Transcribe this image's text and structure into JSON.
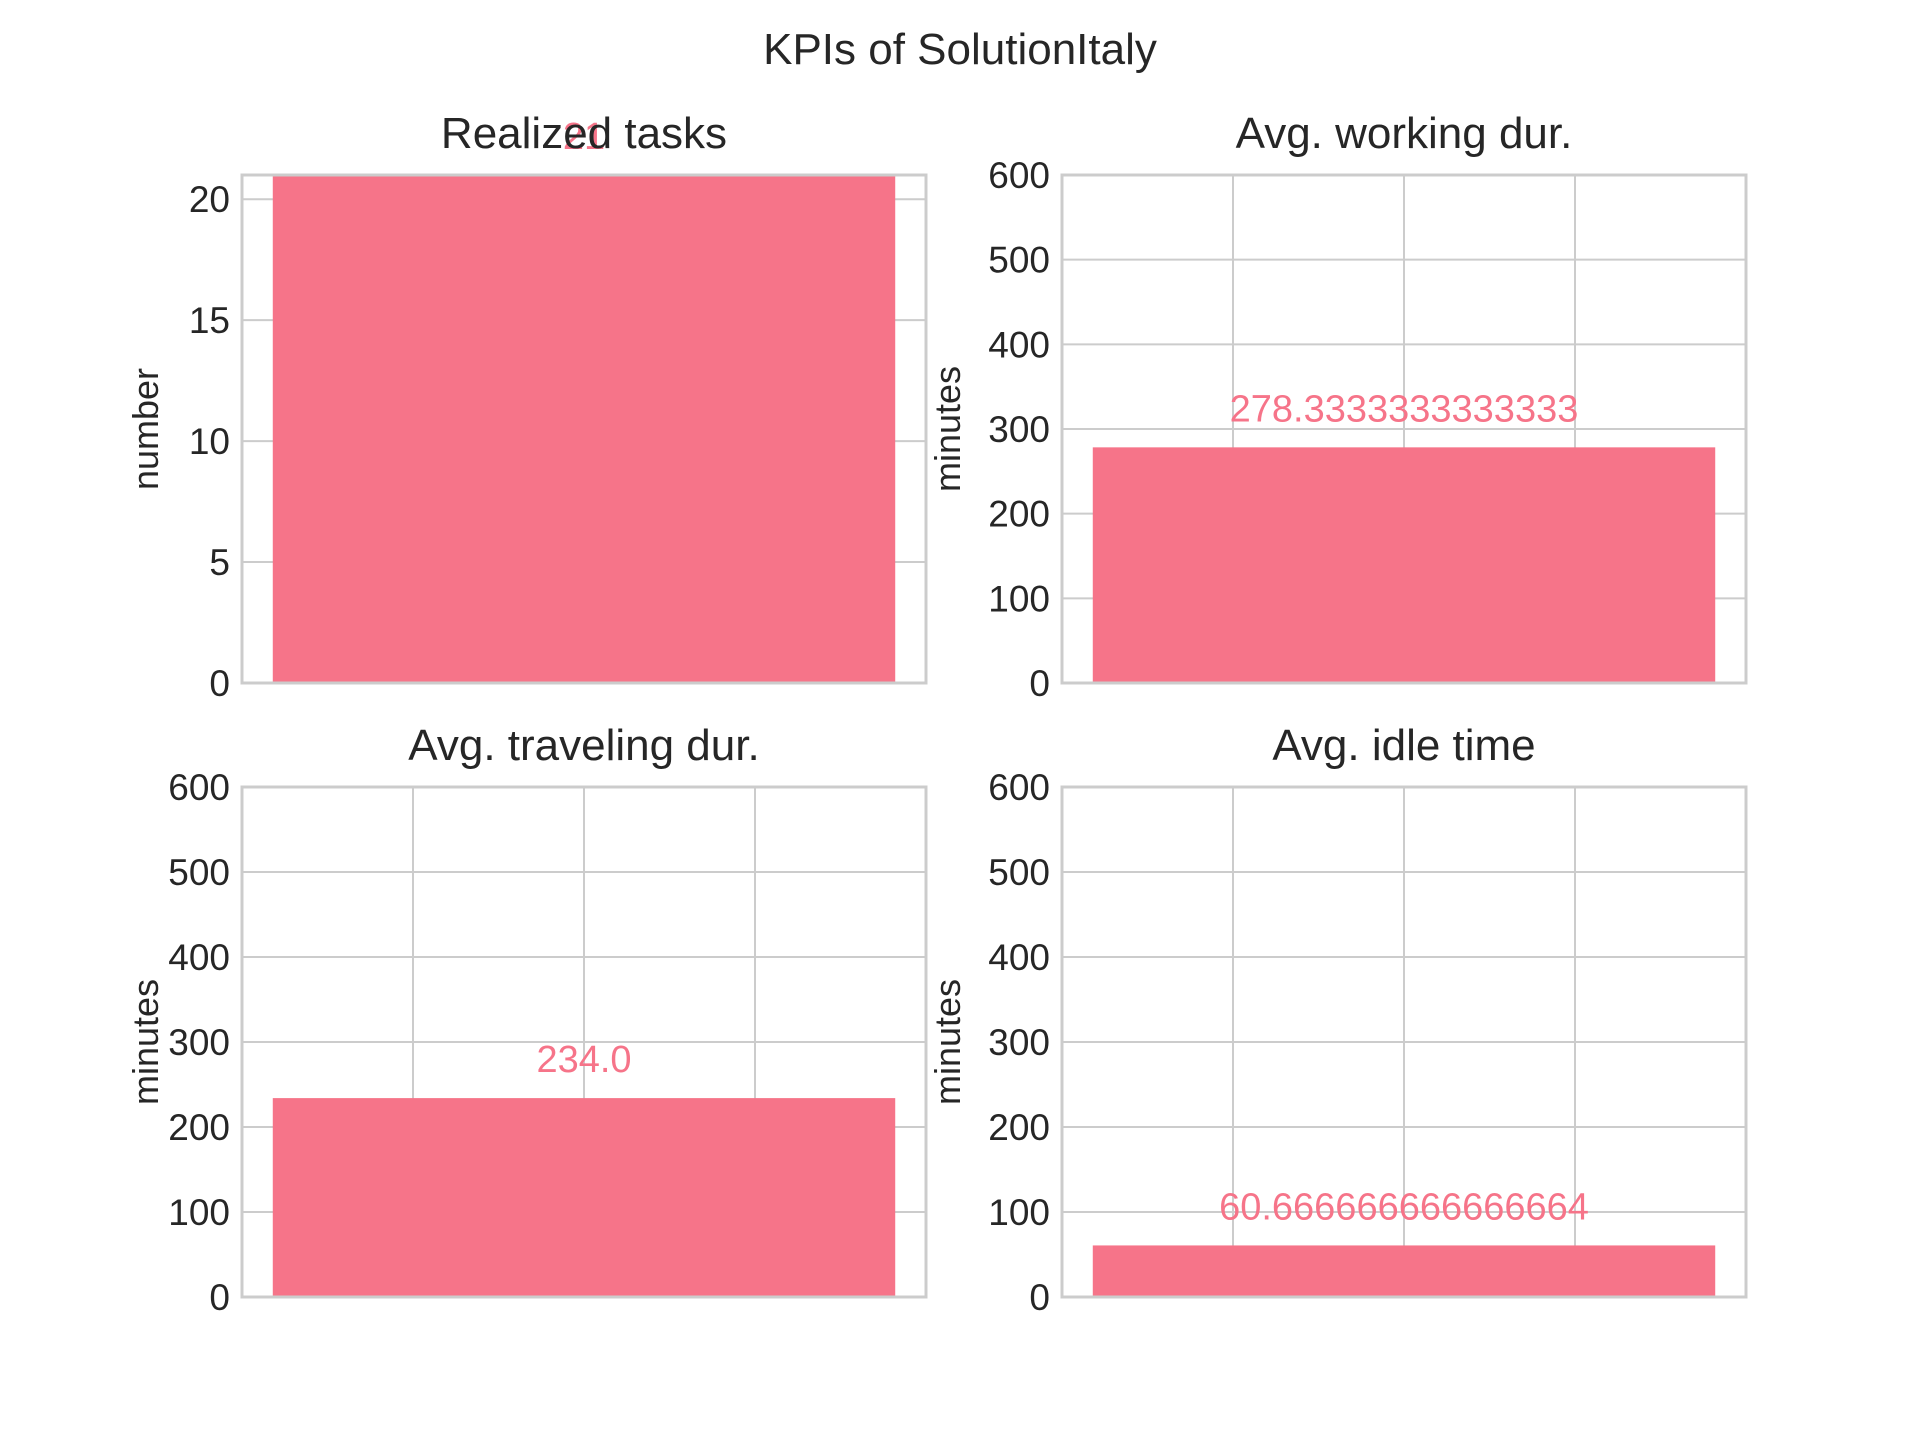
{
  "title": "KPIs of SolutionItaly",
  "colors": {
    "bar": "#f67489",
    "label": "#f67489",
    "grid": "#cccccc",
    "frame": "#cccccc",
    "text": "#262626"
  },
  "chart_data": [
    {
      "type": "bar",
      "title": "Realized tasks",
      "ylabel": "number",
      "xlabel": "",
      "ylim": [
        0,
        21
      ],
      "yticks": [
        "0",
        "5",
        "10",
        "15",
        "20"
      ],
      "categories": [
        ""
      ],
      "values": [
        21
      ],
      "value_labels": [
        "21"
      ],
      "grid": true,
      "xgrid_lines": 1
    },
    {
      "type": "bar",
      "title": "Avg. working dur.",
      "ylabel": "minutes",
      "xlabel": "",
      "ylim": [
        0,
        600
      ],
      "yticks": [
        "0",
        "100",
        "200",
        "300",
        "400",
        "500",
        "600"
      ],
      "categories": [
        ""
      ],
      "values": [
        278.3333333333333
      ],
      "value_labels": [
        "278.3333333333333"
      ],
      "grid": true,
      "xgrid_lines": 3
    },
    {
      "type": "bar",
      "title": "Avg. traveling dur.",
      "ylabel": "minutes",
      "xlabel": "",
      "ylim": [
        0,
        600
      ],
      "yticks": [
        "0",
        "100",
        "200",
        "300",
        "400",
        "500",
        "600"
      ],
      "categories": [
        ""
      ],
      "values": [
        234.0
      ],
      "value_labels": [
        "234.0"
      ],
      "grid": true,
      "xgrid_lines": 3
    },
    {
      "type": "bar",
      "title": "Avg. idle time",
      "ylabel": "minutes",
      "xlabel": "",
      "ylim": [
        0,
        600
      ],
      "yticks": [
        "0",
        "100",
        "200",
        "300",
        "400",
        "500",
        "600"
      ],
      "categories": [
        ""
      ],
      "values": [
        60.666666666666664
      ],
      "value_labels": [
        "60.666666666666664"
      ],
      "grid": true,
      "xgrid_lines": 3
    }
  ]
}
